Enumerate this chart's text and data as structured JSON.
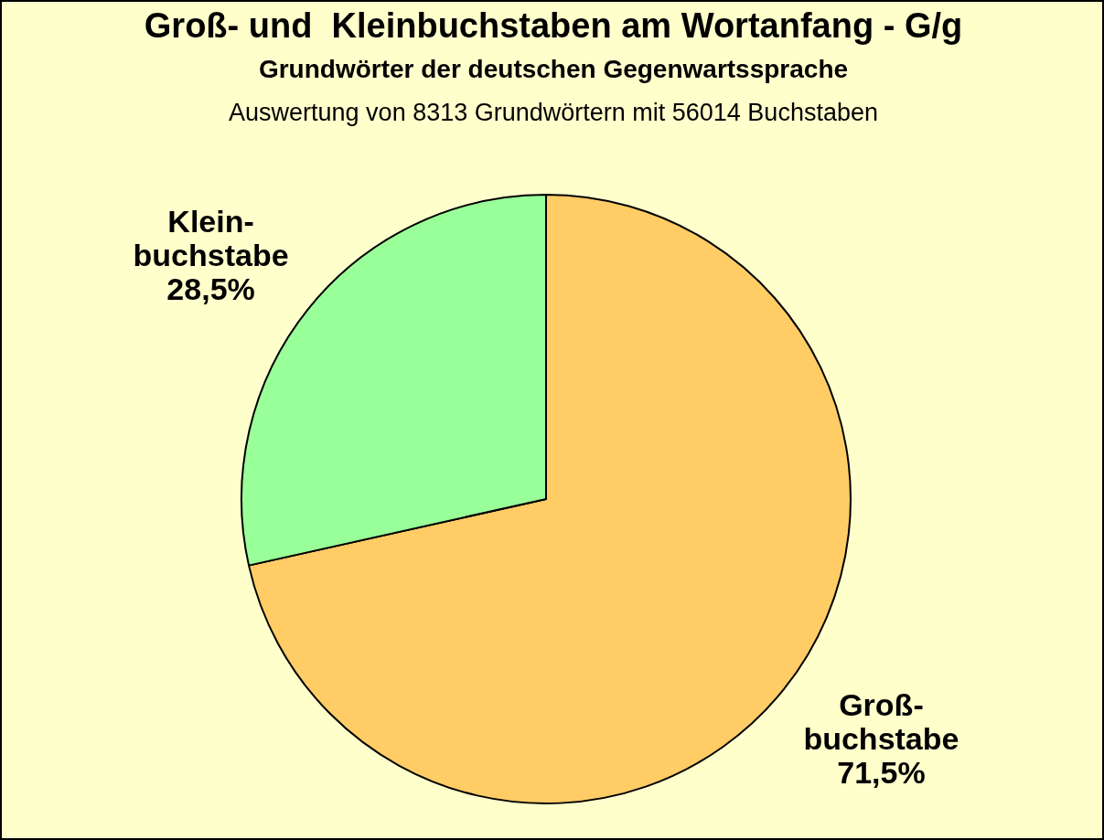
{
  "chart_data": {
    "type": "pie",
    "title": "Groß- und  Kleinbuchstaben am Wortanfang - G/g",
    "subtitle": "Grundwörter der deutschen Gegenwartssprache",
    "annotations": [
      "Auswertung von 8313 Grundwörtern mit 56014 Buchstaben"
    ],
    "categories": [
      "Groß-\nbuchstabe",
      "Klein-\nbuchstabe"
    ],
    "values": [
      71.5,
      28.5
    ],
    "colors": [
      "#ffcc66",
      "#99ff99"
    ],
    "value_labels": [
      "71,5%",
      "28,5%"
    ],
    "legend": false
  }
}
